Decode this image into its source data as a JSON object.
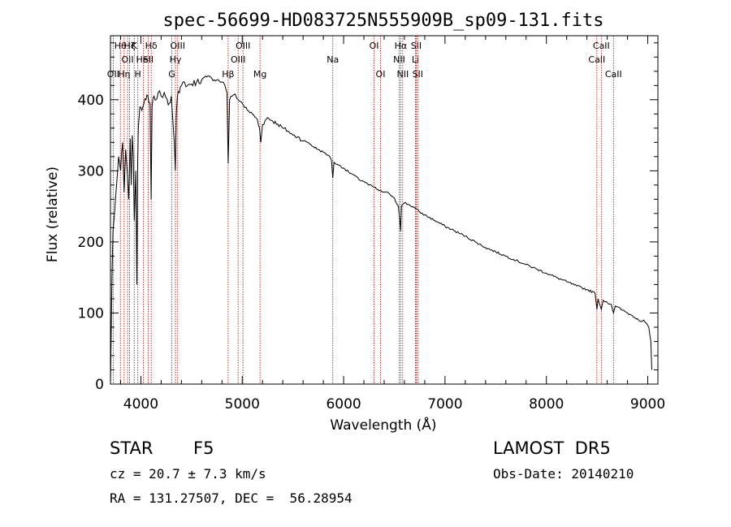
{
  "chart_data": {
    "type": "line",
    "title": "spec-56699-HD083725N555909B_sp09-131.fits",
    "xlabel": "Wavelength (Å)",
    "ylabel": "Flux (relative)",
    "xlim": [
      3700,
      9100
    ],
    "ylim": [
      0,
      490
    ],
    "xticks": [
      4000,
      5000,
      6000,
      7000,
      8000,
      9000
    ],
    "yticks": [
      0,
      100,
      200,
      300,
      400
    ],
    "grid": false,
    "series": [
      {
        "color": "#000000",
        "x": [
          3700,
          3715,
          3725,
          3740,
          3760,
          3780,
          3800,
          3820,
          3835,
          3850,
          3865,
          3880,
          3895,
          3905,
          3915,
          3925,
          3935,
          3950,
          3960,
          3968,
          3975,
          3990,
          4010,
          4030,
          4050,
          4070,
          4090,
          4101,
          4110,
          4130,
          4150,
          4170,
          4200,
          4230,
          4260,
          4280,
          4300,
          4320,
          4330,
          4340,
          4350,
          4360,
          4380,
          4400,
          4430,
          4460,
          4500,
          4550,
          4600,
          4650,
          4700,
          4750,
          4800,
          4830,
          4850,
          4861,
          4875,
          4900,
          4930,
          4960,
          5000,
          5050,
          5100,
          5150,
          5170,
          5183,
          5200,
          5250,
          5300,
          5350,
          5400,
          5450,
          5500,
          5550,
          5600,
          5650,
          5700,
          5750,
          5800,
          5850,
          5880,
          5893,
          5905,
          5950,
          6000,
          6050,
          6100,
          6150,
          6200,
          6250,
          6300,
          6350,
          6400,
          6450,
          6500,
          6540,
          6555,
          6563,
          6570,
          6600,
          6650,
          6700,
          6750,
          6800,
          6900,
          7000,
          7100,
          7200,
          7300,
          7400,
          7500,
          7600,
          7700,
          7800,
          7900,
          8000,
          8100,
          8200,
          8300,
          8400,
          8480,
          8498,
          8510,
          8542,
          8560,
          8600,
          8640,
          8662,
          8680,
          8750,
          8800,
          8850,
          8900,
          8930,
          8960,
          8990,
          9010,
          9020,
          9030,
          9040
        ],
        "y": [
          0,
          150,
          215,
          240,
          280,
          320,
          300,
          340,
          270,
          330,
          300,
          260,
          345,
          280,
          350,
          320,
          230,
          300,
          140,
          310,
          360,
          390,
          385,
          395,
          400,
          405,
          395,
          260,
          390,
          405,
          400,
          410,
          405,
          410,
          400,
          395,
          405,
          360,
          340,
          300,
          380,
          405,
          410,
          420,
          425,
          420,
          422,
          425,
          428,
          432,
          430,
          428,
          425,
          420,
          410,
          310,
          400,
          405,
          408,
          400,
          395,
          385,
          380,
          372,
          360,
          340,
          365,
          375,
          370,
          366,
          360,
          356,
          350,
          348,
          342,
          340,
          334,
          330,
          326,
          322,
          315,
          290,
          312,
          308,
          304,
          298,
          294,
          288,
          285,
          280,
          277,
          272,
          270,
          268,
          262,
          250,
          230,
          215,
          250,
          255,
          252,
          248,
          242,
          238,
          230,
          222,
          215,
          208,
          200,
          192,
          186,
          180,
          174,
          168,
          162,
          156,
          150,
          144,
          138,
          133,
          128,
          105,
          120,
          105,
          118,
          115,
          112,
          100,
          110,
          104,
          100,
          96,
          92,
          88,
          90,
          85,
          80,
          70,
          60,
          20
        ]
      }
    ],
    "lines": [
      {
        "wl": 3727,
        "labels": [
          "OII"
        ],
        "row": 3
      },
      {
        "wl": 3798,
        "labels": [
          "Hθ"
        ],
        "row": 1
      },
      {
        "wl": 3835,
        "labels": [
          "Hη"
        ],
        "row": 3
      },
      {
        "wl": 3869,
        "labels": [
          "OII"
        ],
        "row": 2
      },
      {
        "wl": 3889,
        "labels": [
          "Hζ"
        ],
        "row": 1
      },
      {
        "wl": 3934,
        "labels": [
          "K"
        ],
        "row": 1
      },
      {
        "wl": 3970,
        "labels": [
          "H"
        ],
        "row": 3
      },
      {
        "wl": 4026,
        "labels": [
          "HeI"
        ],
        "row": 2
      },
      {
        "wl": 4072,
        "labels": [
          "SII"
        ],
        "row": 2
      },
      {
        "wl": 4102,
        "labels": [
          "Hδ"
        ],
        "row": 1
      },
      {
        "wl": 4305,
        "labels": [
          "G"
        ],
        "row": 3
      },
      {
        "wl": 4341,
        "labels": [
          "Hγ"
        ],
        "row": 2
      },
      {
        "wl": 4363,
        "labels": [
          "OIII"
        ],
        "row": 1
      },
      {
        "wl": 4861,
        "labels": [
          "Hβ"
        ],
        "row": 3
      },
      {
        "wl": 4959,
        "labels": [
          "OIII"
        ],
        "row": 2
      },
      {
        "wl": 5007,
        "labels": [
          "OIII"
        ],
        "row": 1
      },
      {
        "wl": 5175,
        "labels": [
          "Mg"
        ],
        "row": 3
      },
      {
        "wl": 5893,
        "labels": [
          "Na"
        ],
        "row": 2
      },
      {
        "wl": 6300,
        "labels": [
          "OI"
        ],
        "row": 1
      },
      {
        "wl": 6364,
        "labels": [
          "OI"
        ],
        "row": 3
      },
      {
        "wl": 6548,
        "labels": [
          "NII"
        ],
        "row": 2
      },
      {
        "wl": 6563,
        "labels": [
          "Hα"
        ],
        "row": 1
      },
      {
        "wl": 6583,
        "labels": [
          "NII"
        ],
        "row": 3
      },
      {
        "wl": 6708,
        "labels": [
          "Li"
        ],
        "row": 2
      },
      {
        "wl": 6716,
        "labels": [
          "SII"
        ],
        "row": 1
      },
      {
        "wl": 6731,
        "labels": [
          "SII"
        ],
        "row": 3
      },
      {
        "wl": 8498,
        "labels": [
          "CaII"
        ],
        "row": 2
      },
      {
        "wl": 8542,
        "labels": [
          "CaII"
        ],
        "row": 1
      },
      {
        "wl": 8662,
        "labels": [
          "CaII"
        ],
        "row": 3
      }
    ]
  },
  "info": {
    "class": "STAR",
    "subclass": "F5",
    "cz": "cz = 20.7 ± 7.3 km/s",
    "coords": "RA = 131.27507, DEC =  56.28954",
    "survey": "LAMOST  DR5",
    "obs_date": "Obs-Date: 20140210"
  }
}
